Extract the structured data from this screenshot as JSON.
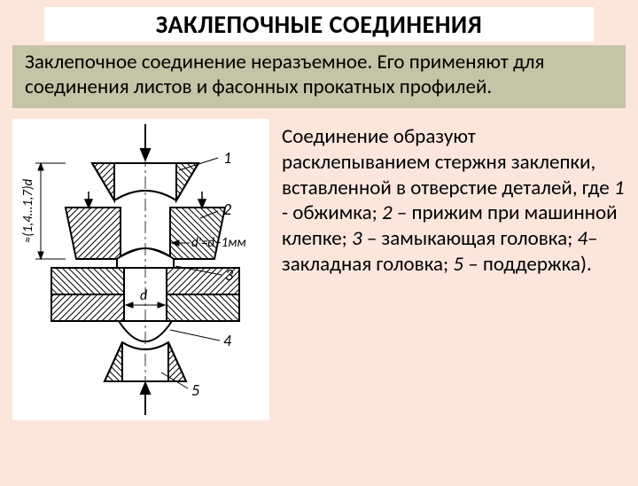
{
  "colors": {
    "page_bg": "#fce6dc",
    "subtitle_bg": "#c4c4a6",
    "title_bg": "#ffffff",
    "text": "#000000",
    "diagram_bg": "#ffffff",
    "diagram_stroke": "#000000"
  },
  "typography": {
    "title_fontsize": 28,
    "title_weight": 700,
    "body_fontsize": 23,
    "body_weight": 400
  },
  "title": "ЗАКЛЕПОЧНЫЕ СОЕДИНЕНИЯ",
  "subtitle": "Заклепочное соединение неразъемное. Его применяют для соединения листов и фасонных прокатных профилей.",
  "body": "Соединение образуют расклепыванием стержня заклепки, вставленной в отверстие деталей, где 1 - обжимка; 2 – прижим при машинной клепке; 3 – замыкающая головка; 4– закладная головка; 5 – поддержка).",
  "diagram": {
    "type": "engineering-section",
    "callouts": [
      "1",
      "2",
      "3",
      "4",
      "5"
    ],
    "dim_labels": {
      "vertical": "≈(1,4…1,7)d",
      "clearance": "d'=d−1мм",
      "dia": "d"
    },
    "hatch_spacing": 5,
    "line_width_main": 2,
    "line_width_thin": 1
  }
}
